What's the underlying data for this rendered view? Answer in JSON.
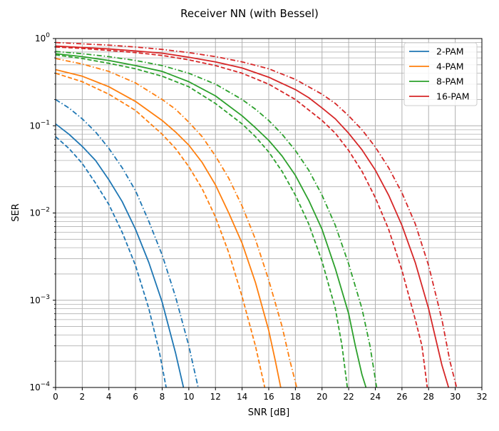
{
  "chart_data": {
    "type": "line",
    "title": "Receiver NN (with Bessel)",
    "xlabel": "SNR [dB]",
    "ylabel": "SER",
    "xlim": [
      0,
      32
    ],
    "ylim": [
      0.0001,
      1
    ],
    "yscale": "log",
    "grid": "major and minor",
    "legend_placement": "top-right",
    "x_ticks": [
      "0",
      "2",
      "4",
      "6",
      "8",
      "10",
      "12",
      "14",
      "16",
      "18",
      "20",
      "22",
      "24",
      "26",
      "28",
      "30",
      "32"
    ],
    "y_ticks": [
      {
        "value": 1,
        "base": "10",
        "exp": "0"
      },
      {
        "value": 0.1,
        "base": "10",
        "exp": "−1"
      },
      {
        "value": 0.01,
        "base": "10",
        "exp": "−2"
      },
      {
        "value": 0.001,
        "base": "10",
        "exp": "−3"
      },
      {
        "value": 0.0001,
        "base": "10",
        "exp": "−4"
      }
    ],
    "groups": [
      {
        "name": "2-PAM",
        "color": "#1f77b4",
        "solid": [
          [
            0,
            0.105
          ],
          [
            1,
            0.08
          ],
          [
            2,
            0.058
          ],
          [
            3,
            0.04
          ],
          [
            4,
            0.024
          ],
          [
            5,
            0.0135
          ],
          [
            6,
            0.0065
          ],
          [
            7,
            0.0027
          ],
          [
            8,
            0.00095
          ],
          [
            9,
            0.00025
          ],
          [
            9.6,
            0.0001
          ]
        ],
        "dashed": [
          [
            0,
            0.075
          ],
          [
            1,
            0.055
          ],
          [
            2,
            0.037
          ],
          [
            3,
            0.022
          ],
          [
            4,
            0.0125
          ],
          [
            5,
            0.006
          ],
          [
            6,
            0.0025
          ],
          [
            7,
            0.0008
          ],
          [
            7.8,
            0.00025
          ],
          [
            8.3,
            0.0001
          ]
        ],
        "dashdot": [
          [
            0,
            0.2
          ],
          [
            1,
            0.16
          ],
          [
            2,
            0.12
          ],
          [
            3,
            0.085
          ],
          [
            4,
            0.055
          ],
          [
            5,
            0.033
          ],
          [
            6,
            0.018
          ],
          [
            7,
            0.008
          ],
          [
            8,
            0.0033
          ],
          [
            9,
            0.0011
          ],
          [
            10,
            0.0003
          ],
          [
            10.7,
            0.0001
          ]
        ]
      },
      {
        "name": "4-PAM",
        "color": "#ff7f0e",
        "solid": [
          [
            0,
            0.44
          ],
          [
            2,
            0.37
          ],
          [
            4,
            0.28
          ],
          [
            6,
            0.19
          ],
          [
            8,
            0.115
          ],
          [
            9,
            0.085
          ],
          [
            10,
            0.06
          ],
          [
            11,
            0.038
          ],
          [
            12,
            0.021
          ],
          [
            13,
            0.01
          ],
          [
            14,
            0.0045
          ],
          [
            15,
            0.0016
          ],
          [
            16,
            0.00045
          ],
          [
            16.5,
            0.0002
          ],
          [
            16.9,
            0.0001
          ]
        ],
        "dashed": [
          [
            0,
            0.4
          ],
          [
            2,
            0.32
          ],
          [
            4,
            0.23
          ],
          [
            6,
            0.15
          ],
          [
            8,
            0.08
          ],
          [
            9,
            0.055
          ],
          [
            10,
            0.034
          ],
          [
            11,
            0.019
          ],
          [
            12,
            0.009
          ],
          [
            13,
            0.0035
          ],
          [
            14,
            0.0011
          ],
          [
            15,
            0.0003
          ],
          [
            15.7,
            0.0001
          ]
        ],
        "dashdot": [
          [
            0,
            0.59
          ],
          [
            2,
            0.51
          ],
          [
            4,
            0.42
          ],
          [
            6,
            0.31
          ],
          [
            8,
            0.2
          ],
          [
            9,
            0.155
          ],
          [
            10,
            0.11
          ],
          [
            11,
            0.075
          ],
          [
            12,
            0.045
          ],
          [
            13,
            0.025
          ],
          [
            14,
            0.012
          ],
          [
            15,
            0.005
          ],
          [
            16,
            0.0017
          ],
          [
            17,
            0.0005
          ],
          [
            17.6,
            0.0002
          ],
          [
            18.1,
            0.0001
          ]
        ]
      },
      {
        "name": "8-PAM",
        "color": "#2ca02c",
        "solid": [
          [
            0,
            0.67
          ],
          [
            2,
            0.62
          ],
          [
            4,
            0.56
          ],
          [
            6,
            0.49
          ],
          [
            8,
            0.42
          ],
          [
            10,
            0.32
          ],
          [
            12,
            0.22
          ],
          [
            14,
            0.13
          ],
          [
            15,
            0.095
          ],
          [
            16,
            0.068
          ],
          [
            17,
            0.045
          ],
          [
            18,
            0.027
          ],
          [
            19,
            0.014
          ],
          [
            20,
            0.0065
          ],
          [
            21,
            0.0023
          ],
          [
            22,
            0.0007
          ],
          [
            22.5,
            0.0003
          ],
          [
            23,
            0.00014
          ],
          [
            23.3,
            0.0001
          ]
        ],
        "dashed": [
          [
            0,
            0.65
          ],
          [
            2,
            0.59
          ],
          [
            4,
            0.52
          ],
          [
            6,
            0.45
          ],
          [
            8,
            0.37
          ],
          [
            10,
            0.28
          ],
          [
            12,
            0.18
          ],
          [
            14,
            0.105
          ],
          [
            15,
            0.075
          ],
          [
            16,
            0.05
          ],
          [
            17,
            0.03
          ],
          [
            18,
            0.016
          ],
          [
            19,
            0.0075
          ],
          [
            20,
            0.0028
          ],
          [
            21,
            0.0008
          ],
          [
            21.5,
            0.0003
          ],
          [
            21.9,
            0.0001
          ]
        ],
        "dashdot": [
          [
            0,
            0.71
          ],
          [
            2,
            0.67
          ],
          [
            4,
            0.62
          ],
          [
            6,
            0.56
          ],
          [
            8,
            0.49
          ],
          [
            10,
            0.4
          ],
          [
            12,
            0.3
          ],
          [
            14,
            0.2
          ],
          [
            15,
            0.155
          ],
          [
            16,
            0.115
          ],
          [
            17,
            0.08
          ],
          [
            18,
            0.052
          ],
          [
            19,
            0.031
          ],
          [
            20,
            0.016
          ],
          [
            21,
            0.0072
          ],
          [
            22,
            0.0026
          ],
          [
            23,
            0.0008
          ],
          [
            23.6,
            0.0003
          ],
          [
            24.1,
            0.0001
          ]
        ]
      },
      {
        "name": "16-PAM",
        "color": "#d62728",
        "solid": [
          [
            0,
            0.82
          ],
          [
            2,
            0.79
          ],
          [
            4,
            0.76
          ],
          [
            6,
            0.72
          ],
          [
            8,
            0.68
          ],
          [
            10,
            0.61
          ],
          [
            12,
            0.54
          ],
          [
            14,
            0.46
          ],
          [
            16,
            0.36
          ],
          [
            18,
            0.26
          ],
          [
            19,
            0.21
          ],
          [
            20,
            0.16
          ],
          [
            21,
            0.12
          ],
          [
            22,
            0.082
          ],
          [
            23,
            0.053
          ],
          [
            24,
            0.031
          ],
          [
            25,
            0.016
          ],
          [
            26,
            0.0072
          ],
          [
            27,
            0.0027
          ],
          [
            28,
            0.0008
          ],
          [
            29,
            0.00018
          ],
          [
            29.5,
            0.0001
          ]
        ],
        "dashed": [
          [
            0,
            0.8
          ],
          [
            2,
            0.77
          ],
          [
            4,
            0.73
          ],
          [
            6,
            0.69
          ],
          [
            8,
            0.64
          ],
          [
            10,
            0.57
          ],
          [
            12,
            0.49
          ],
          [
            14,
            0.4
          ],
          [
            16,
            0.3
          ],
          [
            18,
            0.2
          ],
          [
            20,
            0.115
          ],
          [
            21,
            0.082
          ],
          [
            22,
            0.052
          ],
          [
            23,
            0.03
          ],
          [
            24,
            0.015
          ],
          [
            25,
            0.0065
          ],
          [
            26,
            0.0022
          ],
          [
            27,
            0.0006
          ],
          [
            27.5,
            0.0003
          ],
          [
            27.9,
            0.0001
          ]
        ],
        "dashdot": [
          [
            0,
            0.9
          ],
          [
            2,
            0.87
          ],
          [
            4,
            0.84
          ],
          [
            6,
            0.8
          ],
          [
            8,
            0.75
          ],
          [
            10,
            0.69
          ],
          [
            12,
            0.62
          ],
          [
            14,
            0.54
          ],
          [
            16,
            0.45
          ],
          [
            18,
            0.34
          ],
          [
            20,
            0.23
          ],
          [
            21,
            0.18
          ],
          [
            22,
            0.13
          ],
          [
            23,
            0.09
          ],
          [
            24,
            0.057
          ],
          [
            25,
            0.033
          ],
          [
            26,
            0.017
          ],
          [
            27,
            0.0075
          ],
          [
            28,
            0.0025
          ],
          [
            29,
            0.0006
          ],
          [
            29.6,
            0.0002
          ],
          [
            30.1,
            0.0001
          ]
        ]
      }
    ]
  }
}
